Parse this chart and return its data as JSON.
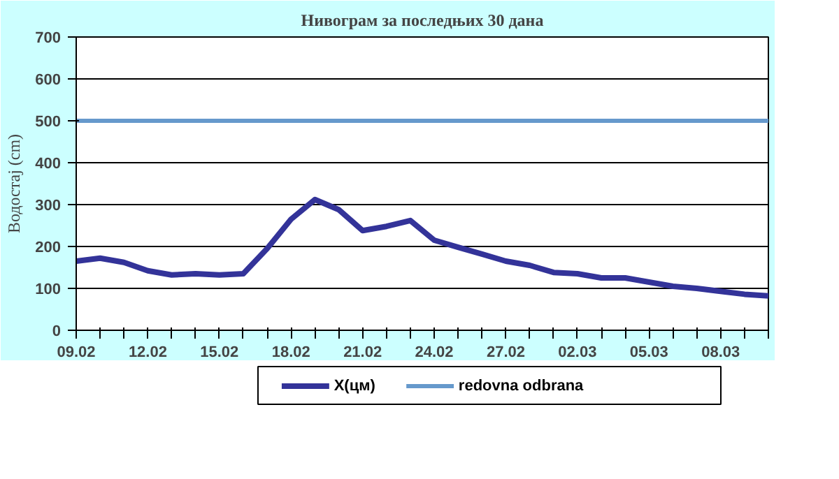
{
  "chart_data": {
    "type": "line",
    "title": "Нивограм за последњих 30 дана",
    "ylabel": "Водостај (cm)",
    "categories": [
      "09.02",
      null,
      null,
      "12.02",
      null,
      null,
      "15.02",
      null,
      null,
      "18.02",
      null,
      null,
      "21.02",
      null,
      null,
      "24.02",
      null,
      null,
      "27.02",
      null,
      null,
      "02.03",
      null,
      null,
      "05.03",
      null,
      null,
      "08.03",
      null,
      null
    ],
    "series": [
      {
        "name": "X(цм)",
        "color": "#333399",
        "values": [
          165,
          172,
          162,
          142,
          132,
          135,
          132,
          135,
          195,
          265,
          312,
          288,
          238,
          248,
          262,
          215,
          198,
          182,
          165,
          155,
          138,
          135,
          125,
          125,
          115,
          105,
          100,
          93,
          86,
          82
        ]
      }
    ],
    "ylim": [
      0,
      700
    ],
    "yticks": [
      0,
      100,
      200,
      300,
      400,
      500,
      600,
      700
    ],
    "grid": "y",
    "legend": "bottom",
    "marker": "none",
    "line_style": "solid",
    "ref_lines": [
      {
        "axis": "y",
        "value": 500,
        "label": "redovna odbrana",
        "color": "#6699cc"
      }
    ]
  }
}
